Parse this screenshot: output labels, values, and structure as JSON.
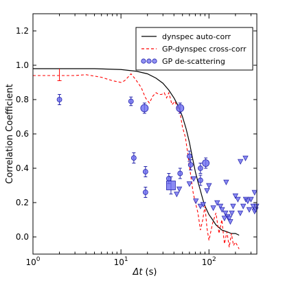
{
  "chart_data": {
    "type": "scatter",
    "xscale": "log",
    "xlim": [
      1,
      350
    ],
    "ylim": [
      -0.1,
      1.3
    ],
    "xlabel_text": "Δt",
    "xlabel_unit": "(s)",
    "ylabel": "Correlation Coefficient",
    "grid": false,
    "legend_position": "top-right",
    "x_ticks": [
      {
        "value": 1,
        "base": "10",
        "exp": "0"
      },
      {
        "value": 10,
        "base": "10",
        "exp": "1"
      },
      {
        "value": 100,
        "base": "10",
        "exp": "2"
      }
    ],
    "y_ticks": [
      "0.0",
      "0.2",
      "0.4",
      "0.6",
      "0.8",
      "1.0",
      "1.2"
    ],
    "legend": [
      {
        "key": "auto",
        "label": "dynspec auto-corr"
      },
      {
        "key": "cross",
        "label": "GP-dynspec cross-corr"
      },
      {
        "key": "gp",
        "label": "GP de-scattering"
      }
    ],
    "colors": {
      "auto": "#000000",
      "cross": "#ff0000",
      "point_fill": "#6d6df0",
      "point_edge": "#2222aa"
    },
    "series": [
      {
        "key": "auto",
        "style": "solid",
        "x": [
          1,
          5,
          10,
          15,
          20,
          25,
          30,
          35,
          40,
          45,
          50,
          55,
          60,
          65,
          70,
          75,
          80,
          85,
          90,
          100,
          110,
          120,
          140,
          160,
          180,
          200,
          220
        ],
        "y": [
          0.98,
          0.98,
          0.975,
          0.965,
          0.95,
          0.925,
          0.895,
          0.855,
          0.81,
          0.76,
          0.7,
          0.63,
          0.55,
          0.46,
          0.38,
          0.32,
          0.27,
          0.22,
          0.18,
          0.13,
          0.1,
          0.07,
          0.04,
          0.03,
          0.02,
          0.02,
          0.01
        ]
      },
      {
        "key": "cross",
        "style": "dashed",
        "x": [
          1,
          3,
          4,
          6,
          8,
          10,
          11,
          12,
          13,
          14,
          15,
          17,
          19,
          21,
          23,
          25,
          27,
          29,
          31,
          33,
          35,
          38,
          41,
          44,
          47,
          50,
          54,
          58,
          62,
          66,
          70,
          75,
          80,
          85,
          90,
          95,
          100,
          110,
          120,
          130,
          140,
          150,
          160,
          170,
          180,
          190,
          200,
          210,
          220
        ],
        "y": [
          0.94,
          0.94,
          0.945,
          0.93,
          0.91,
          0.9,
          0.91,
          0.93,
          0.95,
          0.93,
          0.91,
          0.87,
          0.81,
          0.78,
          0.82,
          0.84,
          0.83,
          0.83,
          0.84,
          0.81,
          0.84,
          0.77,
          0.79,
          0.75,
          0.72,
          0.64,
          0.58,
          0.47,
          0.36,
          0.26,
          0.2,
          0.14,
          0.04,
          0.1,
          0.18,
          0.05,
          -0.02,
          0.08,
          0.14,
          0.02,
          0.1,
          -0.04,
          0.03,
          -0.06,
          0.02,
          -0.05,
          -0.03,
          -0.05,
          -0.07
        ]
      },
      {
        "key": "cross_errbar",
        "x": [
          2,
          2
        ],
        "y": [
          0.91,
          0.98
        ]
      },
      {
        "key": "gp",
        "circles": [
          {
            "x": 2.0,
            "y": 0.8,
            "err": 0.03,
            "size": 3.5
          },
          {
            "x": 13.0,
            "y": 0.79,
            "err": 0.025,
            "size": 3.5
          },
          {
            "x": 18.5,
            "y": 0.75,
            "err": 0.03,
            "size": 5.5
          },
          {
            "x": 47.0,
            "y": 0.75,
            "err": 0.03,
            "size": 5.5
          },
          {
            "x": 14.0,
            "y": 0.46,
            "err": 0.03,
            "size": 3.5
          },
          {
            "x": 19.0,
            "y": 0.38,
            "err": 0.03,
            "size": 3.5
          },
          {
            "x": 19.0,
            "y": 0.26,
            "err": 0.03,
            "size": 3.5
          },
          {
            "x": 35.0,
            "y": 0.34,
            "err": 0.03,
            "size": 3.5
          },
          {
            "x": 37.0,
            "y": 0.3,
            "err": 0.05,
            "size": 6.5
          },
          {
            "x": 47.0,
            "y": 0.37,
            "err": 0.03,
            "size": 3.5
          },
          {
            "x": 60.0,
            "y": 0.47,
            "err": 0.03,
            "size": 3.5
          },
          {
            "x": 62.0,
            "y": 0.42,
            "err": 0.03,
            "size": 3.5
          },
          {
            "x": 80.0,
            "y": 0.4,
            "err": 0.03,
            "size": 3.5
          },
          {
            "x": 80.0,
            "y": 0.33,
            "err": 0.03,
            "size": 3.5
          },
          {
            "x": 92.0,
            "y": 0.43,
            "err": 0.03,
            "size": 5.0
          }
        ],
        "triangles": [
          {
            "x": 43,
            "y": 0.25
          },
          {
            "x": 46,
            "y": 0.28
          },
          {
            "x": 60,
            "y": 0.31
          },
          {
            "x": 67,
            "y": 0.34
          },
          {
            "x": 71,
            "y": 0.21
          },
          {
            "x": 80,
            "y": 0.18
          },
          {
            "x": 86,
            "y": 0.19
          },
          {
            "x": 95,
            "y": 0.27
          },
          {
            "x": 100,
            "y": 0.3
          },
          {
            "x": 112,
            "y": 0.17
          },
          {
            "x": 124,
            "y": 0.2
          },
          {
            "x": 135,
            "y": 0.18
          },
          {
            "x": 141,
            "y": 0.16
          },
          {
            "x": 154,
            "y": 0.14
          },
          {
            "x": 163,
            "y": 0.12
          },
          {
            "x": 170,
            "y": 0.11
          },
          {
            "x": 175,
            "y": 0.09
          },
          {
            "x": 182,
            "y": 0.14
          },
          {
            "x": 188,
            "y": 0.18
          },
          {
            "x": 200,
            "y": 0.24
          },
          {
            "x": 213,
            "y": 0.22
          },
          {
            "x": 227,
            "y": 0.14
          },
          {
            "x": 245,
            "y": 0.18
          },
          {
            "x": 262,
            "y": 0.22
          },
          {
            "x": 276,
            "y": 0.21
          },
          {
            "x": 287,
            "y": 0.16
          },
          {
            "x": 300,
            "y": 0.22
          },
          {
            "x": 318,
            "y": 0.18
          },
          {
            "x": 330,
            "y": 0.15
          },
          {
            "x": 340,
            "y": 0.16
          },
          {
            "x": 346,
            "y": 0.18
          },
          {
            "x": 260,
            "y": 0.46
          },
          {
            "x": 330,
            "y": 0.26
          },
          {
            "x": 228,
            "y": 0.44
          },
          {
            "x": 157,
            "y": 0.32
          },
          {
            "x": 150,
            "y": 0.11
          }
        ]
      }
    ]
  }
}
